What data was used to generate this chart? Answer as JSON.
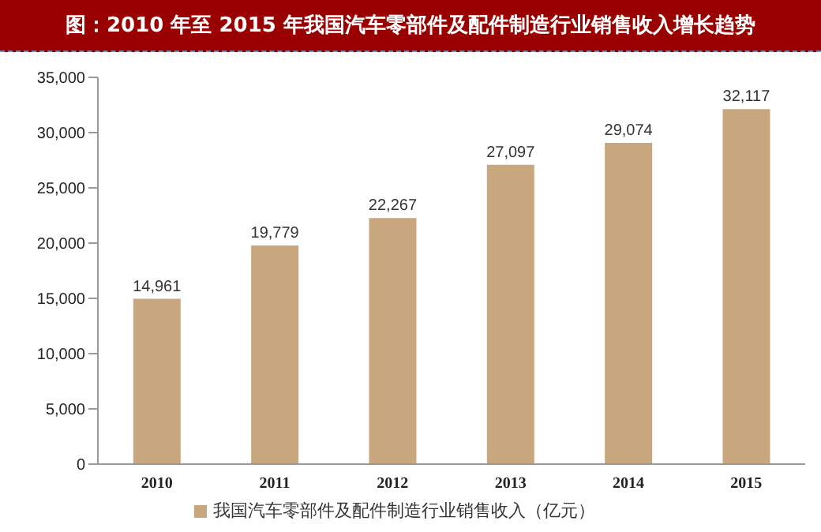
{
  "chart_data": {
    "type": "bar",
    "title": "图：2010 年至 2015 年我国汽车零部件及配件制造行业销售收入增长趋势",
    "categories": [
      "2010",
      "2011",
      "2012",
      "2013",
      "2014",
      "2015"
    ],
    "series": [
      {
        "name": "我国汽车零部件及配件制造行业销售收入（亿元）",
        "color": "#c8a77f",
        "values": [
          14961,
          19779,
          22267,
          27097,
          29074,
          32117
        ],
        "value_labels": [
          "14,961",
          "19,779",
          "22,267",
          "27,097",
          "29,074",
          "32,117"
        ]
      }
    ],
    "ylim": [
      0,
      35000
    ],
    "yticks": [
      0,
      {
        "value": 5000,
        "label": "5,000"
      },
      {
        "value": 10000,
        "label": "10,000"
      },
      {
        "value": 15000,
        "label": "15,000"
      },
      {
        "value": 20000,
        "label": "20,000"
      },
      {
        "value": 25000,
        "label": "25,000"
      },
      {
        "value": 30000,
        "label": "30,000"
      },
      {
        "value": 35000,
        "label": "35,000"
      }
    ],
    "grid": false,
    "legend": "bottom"
  }
}
